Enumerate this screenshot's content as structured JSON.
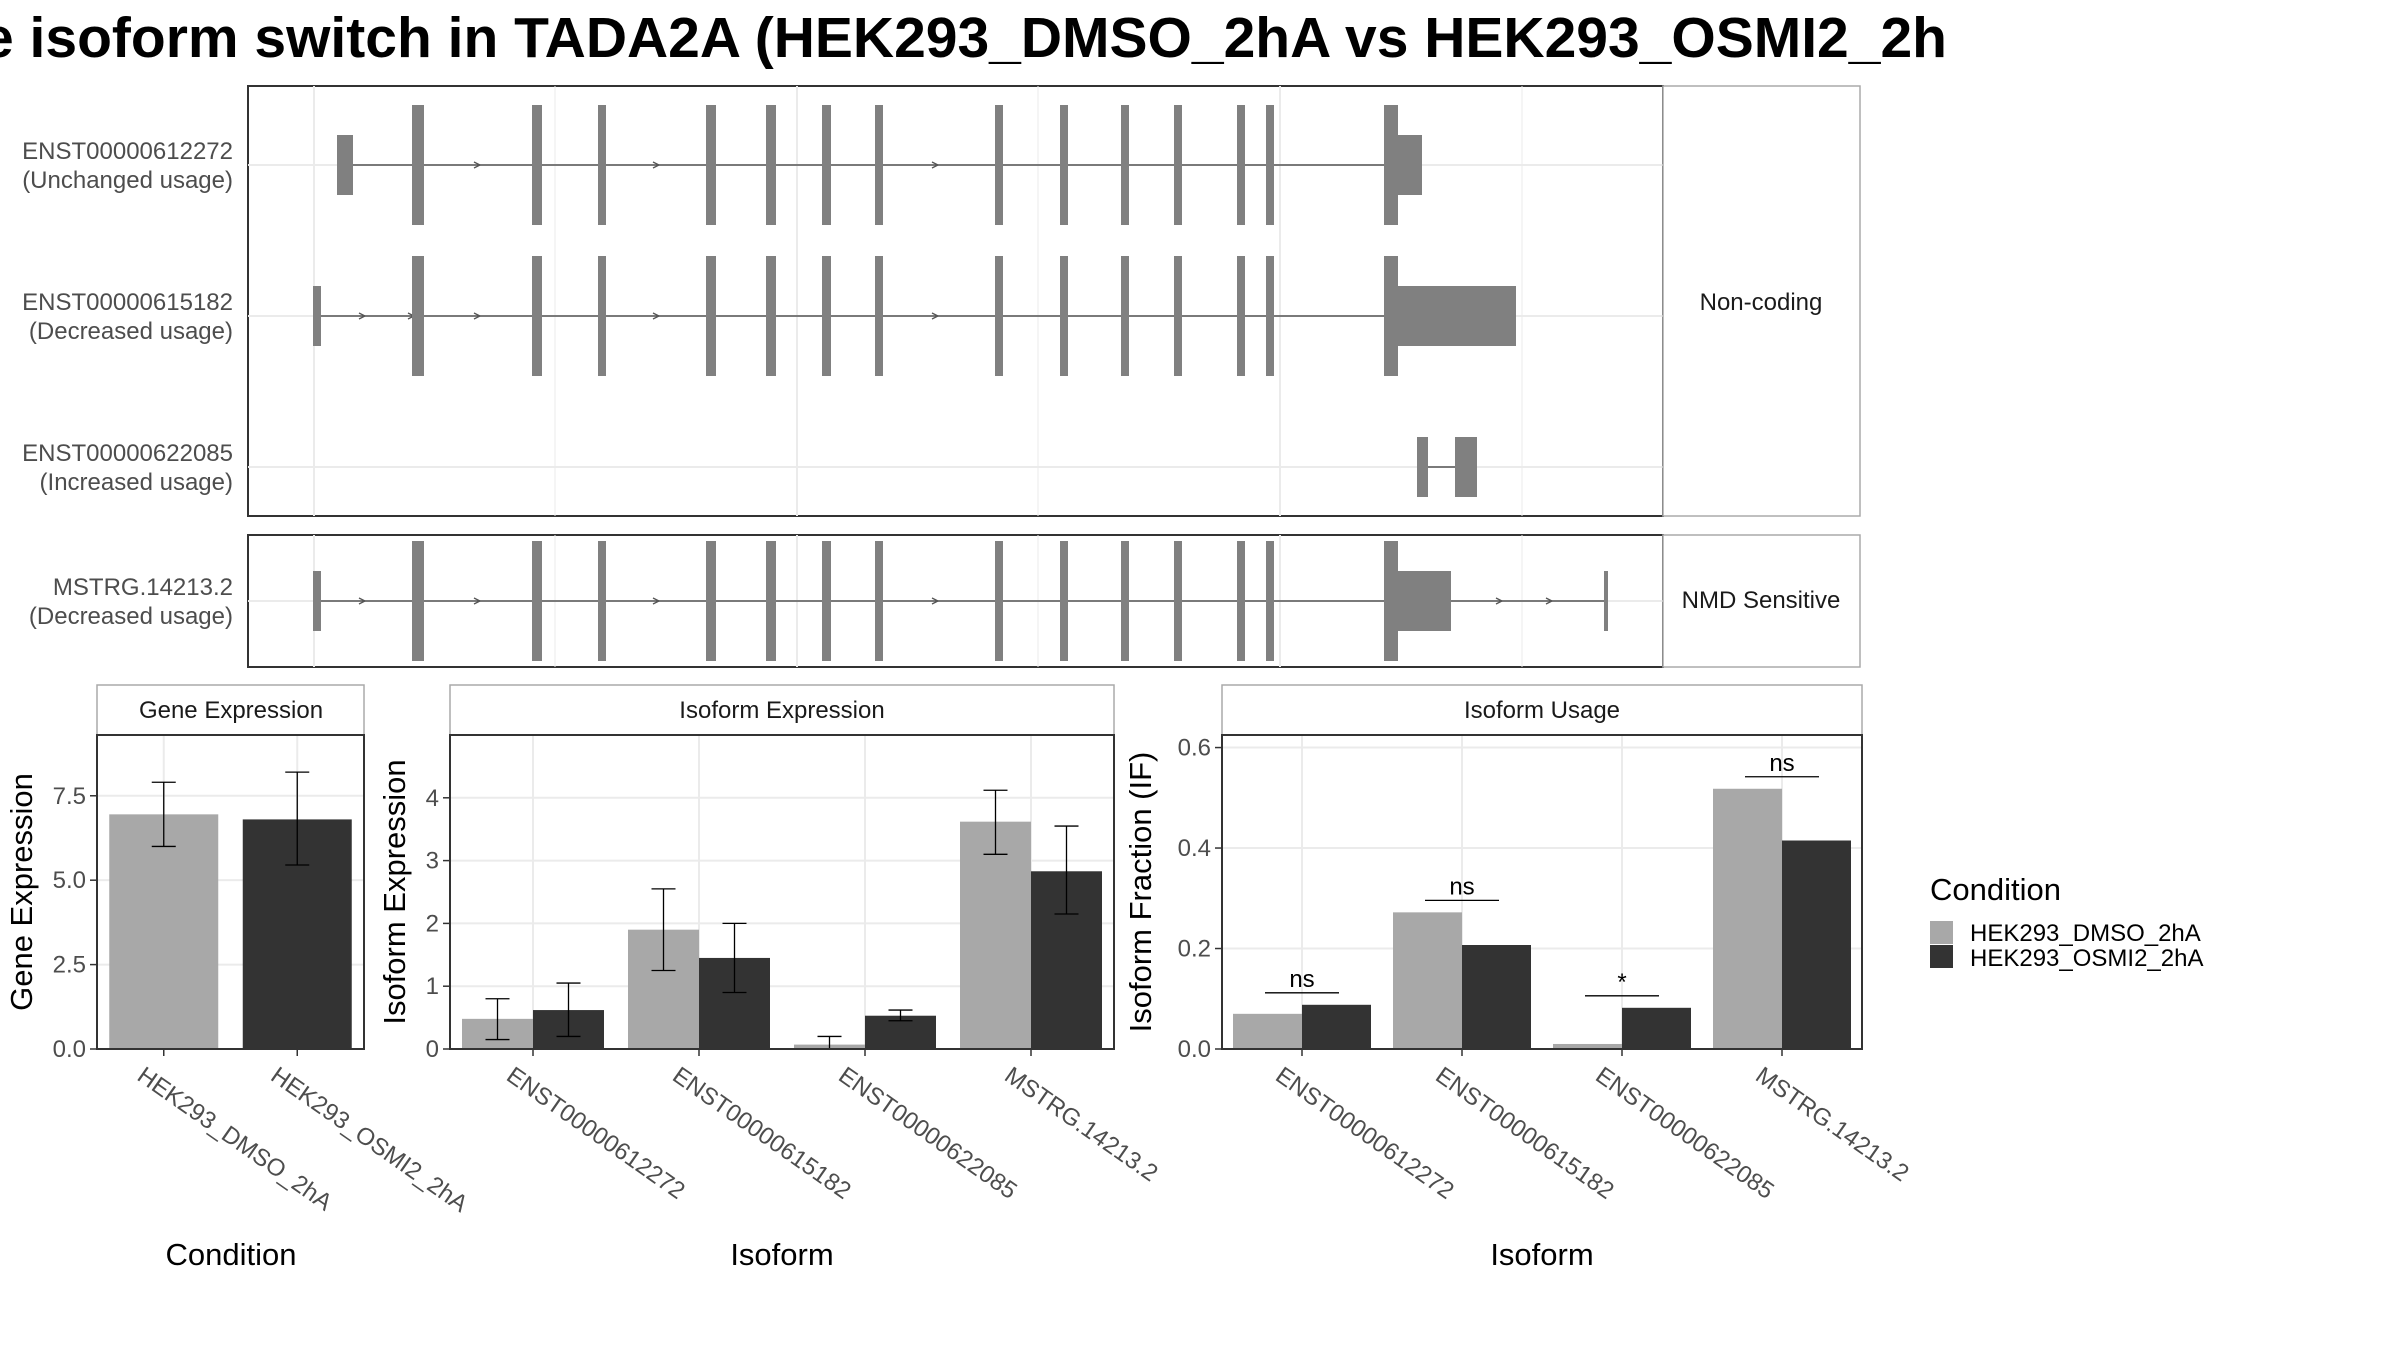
{
  "title": "e isoform switch in TADA2A (HEK293_DMSO_2hA vs HEK293_OSMI2_2h",
  "colors": {
    "dmso": "#a8a8a8",
    "osmi": "#333333",
    "exon": "#808080",
    "intron": "#555555",
    "strip": "#ffffff",
    "grid": "#ebebeb",
    "border": "#333333"
  },
  "chart_data": [
    {
      "type": "gene-structure",
      "panels": [
        {
          "strip": "Non-coding",
          "isoforms": [
            {
              "id": "ENST00000612272",
              "label": "(Unchanged usage)"
            },
            {
              "id": "ENST00000615182",
              "label": "(Decreased usage)"
            },
            {
              "id": "ENST00000622085",
              "label": "(Increased usage)"
            }
          ]
        },
        {
          "strip": "NMD Sensitive",
          "isoforms": [
            {
              "id": "MSTRG.14213.2",
              "label": "(Decreased usage)"
            }
          ]
        }
      ]
    },
    {
      "type": "bar",
      "strip": "Gene Expression",
      "xlabel": "Condition",
      "ylabel": "Gene Expression",
      "categories": [
        "HEK293_DMSO_2hA",
        "HEK293_OSMI2_2hA"
      ],
      "values": [
        6.95,
        6.8
      ],
      "errors": [
        [
          6.0,
          7.9
        ],
        [
          5.45,
          8.2
        ]
      ],
      "yticks": [
        "0.0",
        "2.5",
        "5.0",
        "7.5"
      ],
      "ylim": [
        0,
        9.3
      ]
    },
    {
      "type": "bar",
      "strip": "Isoform Expression",
      "xlabel": "Isoform",
      "ylabel": "Isoform Expression",
      "categories": [
        "ENST00000612272",
        "ENST00000615182",
        "ENST00000622085",
        "MSTRG.14213.2"
      ],
      "series": [
        {
          "name": "HEK293_DMSO_2hA",
          "values": [
            0.48,
            1.9,
            0.07,
            3.62
          ],
          "errors": [
            [
              0.15,
              0.8
            ],
            [
              1.25,
              2.55
            ],
            [
              0.0,
              0.2
            ],
            [
              3.1,
              4.12
            ]
          ]
        },
        {
          "name": "HEK293_OSMI2_2hA",
          "values": [
            0.62,
            1.45,
            0.53,
            2.83
          ],
          "errors": [
            [
              0.2,
              1.05
            ],
            [
              0.9,
              2.0
            ],
            [
              0.45,
              0.62
            ],
            [
              2.15,
              3.55
            ]
          ]
        }
      ],
      "yticks": [
        "0",
        "1",
        "2",
        "3",
        "4"
      ],
      "ylim": [
        0,
        5.0
      ]
    },
    {
      "type": "bar",
      "strip": "Isoform Usage",
      "xlabel": "Isoform",
      "ylabel": "Isoform Fraction (IF)",
      "categories": [
        "ENST00000612272",
        "ENST00000615182",
        "ENST00000622085",
        "MSTRG.14213.2"
      ],
      "series": [
        {
          "name": "HEK293_DMSO_2hA",
          "values": [
            0.07,
            0.272,
            0.01,
            0.518
          ]
        },
        {
          "name": "HEK293_OSMI2_2hA",
          "values": [
            0.088,
            0.207,
            0.082,
            0.415
          ]
        }
      ],
      "significance": [
        "ns",
        "ns",
        "*",
        "ns"
      ],
      "yticks": [
        "0.0",
        "0.2",
        "0.4",
        "0.6"
      ],
      "ylim": [
        0,
        0.625
      ]
    }
  ],
  "legend": {
    "title": "Condition",
    "items": [
      "HEK293_DMSO_2hA",
      "HEK293_OSMI2_2hA"
    ]
  }
}
